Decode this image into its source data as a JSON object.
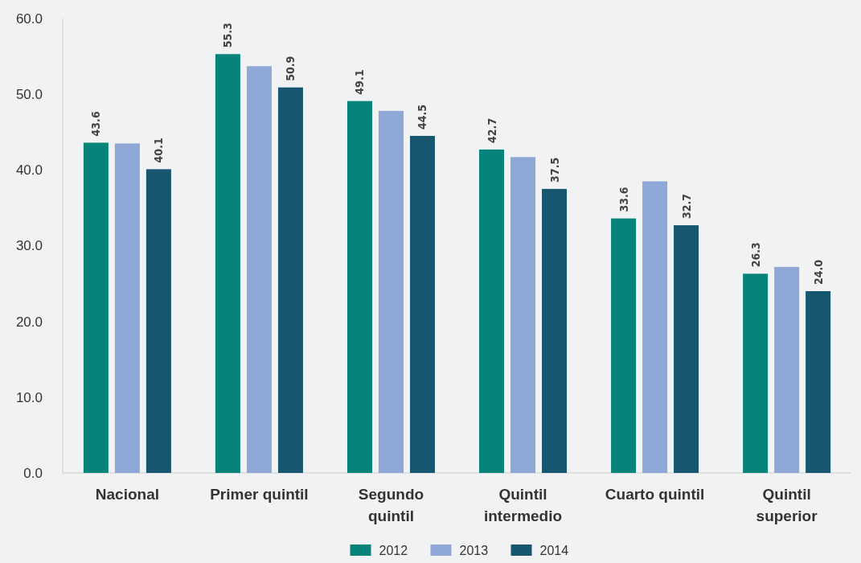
{
  "chart_data": {
    "type": "bar",
    "categories": [
      "Nacional",
      "Primer quintil",
      "Segundo quintil",
      "Quintil intermedio",
      "Cuarto quintil",
      "Quintil superior"
    ],
    "series": [
      {
        "name": "2012",
        "color": "#07837a",
        "values": [
          43.6,
          55.3,
          49.1,
          42.7,
          33.6,
          26.3
        ],
        "value_labels": [
          "43.6",
          "55.3",
          "49.1",
          "42.7",
          "33.6",
          "26.3"
        ]
      },
      {
        "name": "2013",
        "color": "#8ea7d6",
        "values": [
          43.5,
          53.7,
          47.8,
          41.7,
          38.5,
          27.2
        ]
      },
      {
        "name": "2014",
        "color": "#16566f",
        "values": [
          40.1,
          50.9,
          44.5,
          37.5,
          32.7,
          24.0
        ],
        "value_labels": [
          "40.1",
          "50.9",
          "44.5",
          "37.5",
          "32.7",
          "24.0"
        ]
      }
    ],
    "ylim": [
      0,
      60
    ],
    "yticks": [
      {
        "value": 0,
        "label": "0.0"
      },
      {
        "value": 10,
        "label": "10.0"
      },
      {
        "value": 20,
        "label": "20.0"
      },
      {
        "value": 30,
        "label": "30.0"
      },
      {
        "value": 40,
        "label": "40.0"
      },
      {
        "value": 50,
        "label": "50.0"
      },
      {
        "value": 60,
        "label": "60.0"
      }
    ],
    "grid": false,
    "legend": "bottom"
  }
}
